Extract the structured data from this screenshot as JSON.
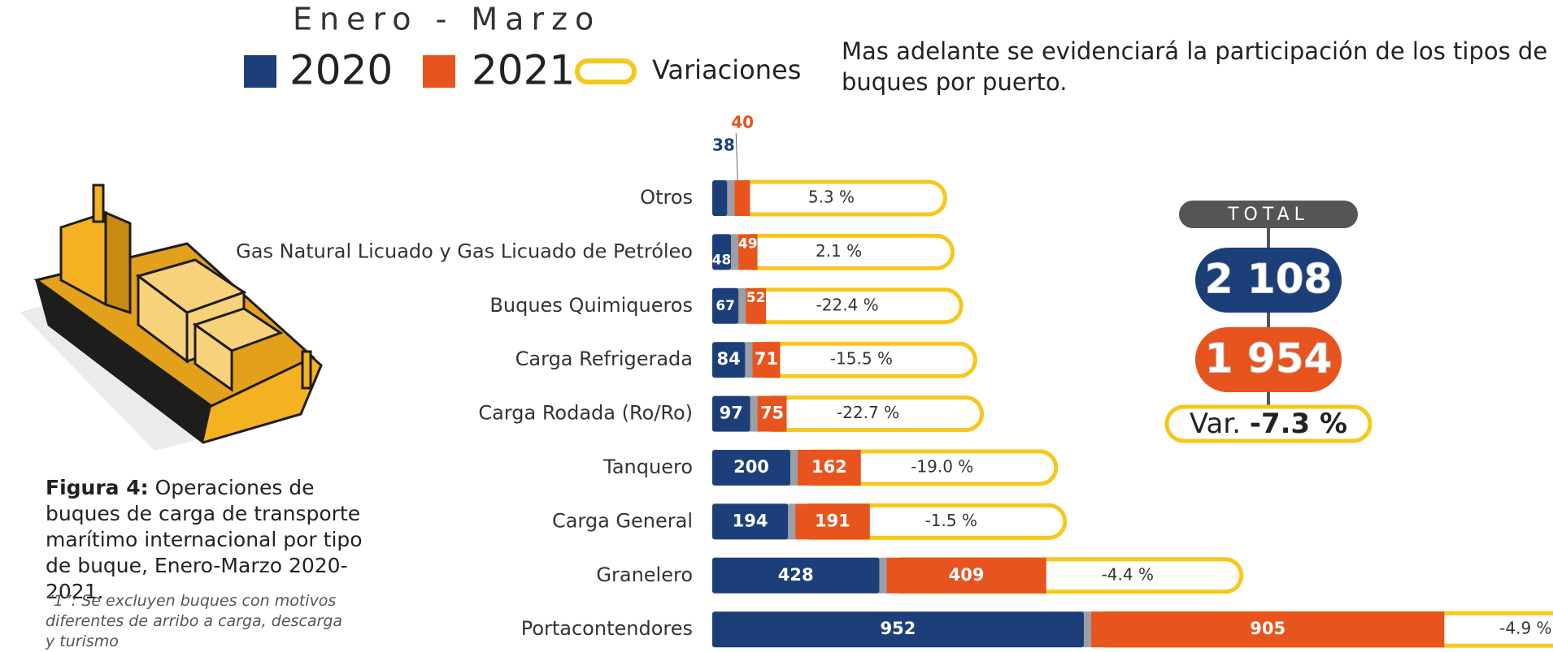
{
  "chart_data": {
    "type": "bar",
    "orientation": "horizontal",
    "period": "Enero - Marzo",
    "categories": [
      "Otros",
      "Gas Natural Licuado y Gas Licuado de Petróleo",
      "Buques Quimiqueros",
      "Carga Refrigerada",
      "Carga Rodada (Ro/Ro)",
      "Tanquero",
      "Carga General",
      "Granelero",
      "Portacontendores"
    ],
    "series": [
      {
        "name": "2020",
        "color": "#1c3f7a",
        "values": [
          38,
          48,
          67,
          84,
          97,
          200,
          194,
          428,
          952
        ]
      },
      {
        "name": "2021",
        "color": "#e8541e",
        "values": [
          40,
          49,
          52,
          71,
          75,
          162,
          191,
          409,
          905
        ]
      },
      {
        "name": "Variaciones",
        "color": "#f6c81c",
        "values": [
          5.3,
          2.1,
          -22.4,
          -15.5,
          -22.7,
          -19.0,
          -1.5,
          -4.4,
          -4.9
        ],
        "value_labels": [
          "5.3 %",
          "2.1 %",
          "-22.4 %",
          "-15.5 %",
          "-22.7 %",
          "-19.0 %",
          "-1.5 %",
          "-4.4 %",
          "-4.9 %"
        ]
      }
    ],
    "total": {
      "title": "TOTAL",
      "values": [
        2108,
        1954
      ],
      "value_labels": [
        "2 108",
        "1 954"
      ],
      "variation_prefix": "Var.",
      "variation": -7.3,
      "variation_label": "-7.3 %"
    }
  },
  "text": "Mas adelante se evidenciará la participación de los tipos de buques por puerto.",
  "caption": {
    "label": "Figura 4:",
    "text": "Operaciones de buques de carga de transporte marítimo internacional por tipo de buque, Enero-Marzo 2020-2021."
  },
  "note": "“1”: Se excluyen buques con motivos diferentes de arribo a carga, descarga y turismo"
}
